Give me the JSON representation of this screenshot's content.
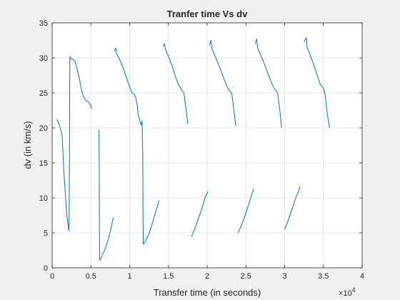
{
  "chart_data": {
    "type": "line",
    "title": "Tranfer time Vs dv",
    "xlabel": "Transfer time (in seconds)",
    "ylabel": "dv (in km/s)",
    "x_multiplier_label": "×10",
    "x_multiplier_exponent": "4",
    "xlim": [
      0,
      40000
    ],
    "ylim": [
      0,
      35
    ],
    "x_ticks": [
      0,
      5000,
      10000,
      15000,
      20000,
      25000,
      30000,
      35000,
      40000
    ],
    "x_tick_labels": [
      "0",
      "0.5",
      "1",
      "1.5",
      "2",
      "2.5",
      "3",
      "3.5",
      "4"
    ],
    "y_ticks": [
      0,
      5,
      10,
      15,
      20,
      25,
      30,
      35
    ],
    "y_tick_labels": [
      "0",
      "5",
      "10",
      "15",
      "20",
      "25",
      "30",
      "35"
    ],
    "grid": true,
    "line_color": "#0072bd",
    "series": [
      {
        "points": [
          [
            600,
            21.2
          ],
          [
            800,
            20.8
          ],
          [
            1100,
            19.8
          ],
          [
            1300,
            18.7
          ],
          [
            1500,
            14.0
          ],
          [
            1700,
            10.5
          ],
          [
            1900,
            7.5
          ],
          [
            2150,
            5.3
          ],
          [
            2200,
            8.0
          ],
          [
            2230,
            15.0
          ],
          [
            2250,
            20.0
          ],
          [
            2270,
            26.0
          ],
          [
            2290,
            30.2
          ],
          [
            2400,
            29.9
          ],
          [
            2600,
            29.8
          ],
          [
            2800,
            29.7
          ],
          [
            3000,
            29.4
          ],
          [
            3200,
            28.6
          ],
          [
            3300,
            28.0
          ],
          [
            3400,
            27.6
          ],
          [
            3500,
            27.2
          ],
          [
            3700,
            25.9
          ],
          [
            3900,
            24.9
          ],
          [
            4100,
            24.3
          ],
          [
            4400,
            23.9
          ],
          [
            4700,
            23.7
          ],
          [
            4850,
            23.4
          ],
          [
            5000,
            23.3
          ],
          [
            5050,
            22.9
          ],
          [
            5100,
            22.7
          ]
        ]
      },
      {
        "points": [
          [
            6000,
            19.7
          ],
          [
            6050,
            19.3
          ],
          [
            6080,
            14.0
          ],
          [
            6100,
            5.0
          ],
          [
            6150,
            1.1
          ],
          [
            6300,
            1.4
          ],
          [
            6600,
            2.1
          ],
          [
            6900,
            2.9
          ],
          [
            7200,
            3.9
          ],
          [
            7500,
            5.2
          ],
          [
            7900,
            7.2
          ]
        ]
      },
      {
        "points": [
          [
            8000,
            31.0
          ],
          [
            8200,
            31.4
          ],
          [
            8300,
            30.6
          ],
          [
            8600,
            30.0
          ],
          [
            9000,
            29.0
          ],
          [
            9400,
            27.8
          ],
          [
            9800,
            26.5
          ],
          [
            10100,
            25.5
          ],
          [
            10300,
            25.0
          ],
          [
            10600,
            24.8
          ],
          [
            10800,
            24.3
          ],
          [
            11000,
            23.0
          ],
          [
            11100,
            21.8
          ],
          [
            11300,
            21.2
          ],
          [
            11400,
            20.6
          ],
          [
            11500,
            20.4
          ],
          [
            11600,
            21.0
          ],
          [
            11700,
            16.0
          ],
          [
            11720,
            8.0
          ],
          [
            11750,
            3.4
          ],
          [
            12000,
            3.7
          ],
          [
            12400,
            4.6
          ],
          [
            12800,
            5.9
          ],
          [
            13300,
            7.8
          ],
          [
            13800,
            9.6
          ]
        ]
      },
      {
        "points": [
          [
            14300,
            31.6
          ],
          [
            14500,
            32.0
          ],
          [
            14600,
            31.3
          ],
          [
            15000,
            30.2
          ],
          [
            15500,
            28.8
          ],
          [
            16000,
            27.0
          ],
          [
            16400,
            26.0
          ],
          [
            16800,
            25.3
          ],
          [
            17000,
            25.0
          ],
          [
            17300,
            22.5
          ],
          [
            17500,
            20.5
          ]
        ]
      },
      {
        "points": [
          [
            18000,
            4.5
          ],
          [
            18400,
            5.6
          ],
          [
            18800,
            6.8
          ],
          [
            19300,
            8.4
          ],
          [
            19800,
            10.3
          ],
          [
            20100,
            10.9
          ]
        ]
      },
      {
        "points": [
          [
            20300,
            31.8
          ],
          [
            20500,
            32.5
          ],
          [
            20600,
            31.4
          ],
          [
            21000,
            30.3
          ],
          [
            21500,
            29.0
          ],
          [
            21900,
            27.8
          ],
          [
            22300,
            26.6
          ],
          [
            22700,
            25.6
          ],
          [
            23000,
            25.2
          ],
          [
            23200,
            24.8
          ],
          [
            23500,
            22.0
          ],
          [
            23700,
            20.3
          ]
        ]
      },
      {
        "points": [
          [
            24000,
            5.0
          ],
          [
            24400,
            6.0
          ],
          [
            24900,
            7.5
          ],
          [
            25400,
            9.2
          ],
          [
            25800,
            10.6
          ],
          [
            26000,
            11.3
          ]
        ]
      },
      {
        "points": [
          [
            26200,
            32.0
          ],
          [
            26400,
            32.7
          ],
          [
            26500,
            31.5
          ],
          [
            26900,
            30.4
          ],
          [
            27400,
            29.1
          ],
          [
            27800,
            27.9
          ],
          [
            28200,
            26.7
          ],
          [
            28600,
            25.7
          ],
          [
            28900,
            25.3
          ],
          [
            29100,
            24.9
          ],
          [
            29400,
            22.3
          ],
          [
            29600,
            20.0
          ]
        ]
      },
      {
        "points": [
          [
            30000,
            5.5
          ],
          [
            30400,
            6.6
          ],
          [
            30900,
            8.2
          ],
          [
            31400,
            9.9
          ],
          [
            31800,
            11.0
          ],
          [
            32000,
            11.6
          ]
        ]
      },
      {
        "points": [
          [
            32500,
            32.3
          ],
          [
            32800,
            32.9
          ],
          [
            32900,
            31.5
          ],
          [
            33300,
            30.4
          ],
          [
            33800,
            28.9
          ],
          [
            34200,
            27.5
          ],
          [
            34600,
            26.2
          ],
          [
            35000,
            25.7
          ],
          [
            35200,
            24.9
          ],
          [
            35500,
            22.0
          ],
          [
            35800,
            20.0
          ]
        ]
      }
    ]
  }
}
